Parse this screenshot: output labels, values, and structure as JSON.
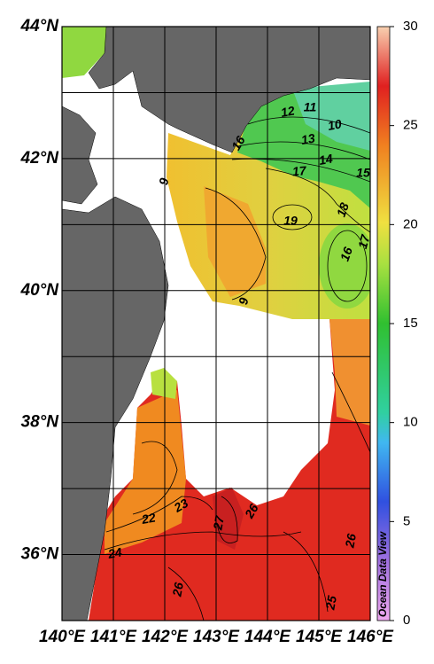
{
  "map": {
    "lonlim": [
      140,
      146
    ],
    "latlim": [
      35,
      44
    ],
    "lon_ticks": [
      {
        "value": 140,
        "label": "140°E"
      },
      {
        "value": 141,
        "label": "141°E"
      },
      {
        "value": 142,
        "label": "142°E"
      },
      {
        "value": 143,
        "label": "143°E"
      },
      {
        "value": 144,
        "label": "144°E"
      },
      {
        "value": 145,
        "label": "145°E"
      },
      {
        "value": 146,
        "label": "146°E"
      }
    ],
    "lat_ticks": [
      {
        "value": 44,
        "label": "44°N"
      },
      {
        "value": 42,
        "label": "42°N"
      },
      {
        "value": 40,
        "label": "40°N"
      },
      {
        "value": 38,
        "label": "38°N"
      },
      {
        "value": 36,
        "label": "36°N"
      }
    ],
    "lat_grid": [
      37,
      39,
      41,
      43
    ],
    "contour_labels": [
      11,
      12,
      10,
      13,
      16,
      14,
      17,
      15,
      9,
      18,
      19,
      16,
      17,
      9,
      22,
      23,
      27,
      26,
      24,
      26,
      26,
      25
    ]
  },
  "colorbar": {
    "lim": [
      0,
      30
    ],
    "ticks": [
      0,
      5,
      10,
      15,
      20,
      25,
      30
    ]
  },
  "credit": "Ocean Data View"
}
